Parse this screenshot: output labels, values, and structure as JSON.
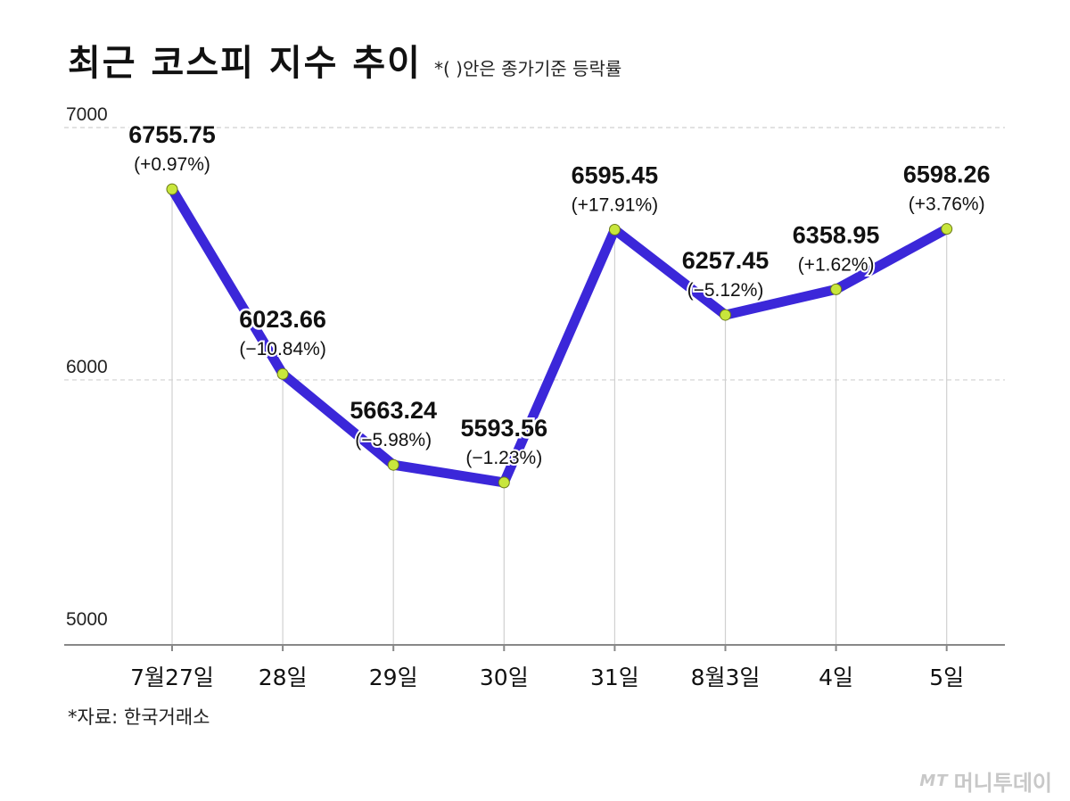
{
  "title": "최근 코스피 지수 추이",
  "subtitle": "*( )안은 종가기준 등락률",
  "source": "*자료: 한국거래소",
  "watermark": {
    "logo": "MT",
    "name": "머니투데이"
  },
  "colors": {
    "line": "#3b27d9",
    "marker": "#c8e63c",
    "grid": "#d0d0d0",
    "axis": "#888888"
  },
  "chart_data": {
    "type": "line",
    "title": "최근 코스피 지수 추이",
    "categories": [
      "7월27일",
      "28일",
      "29일",
      "30일",
      "31일",
      "8월3일",
      "4일",
      "5일"
    ],
    "values": [
      6755.75,
      6023.66,
      5663.24,
      5593.56,
      6595.45,
      6257.45,
      6358.95,
      6598.26
    ],
    "value_labels": [
      "6755.75",
      "6023.66",
      "5663.24",
      "5593.56",
      "6595.45",
      "6257.45",
      "6358.95",
      "6598.26"
    ],
    "change_labels": [
      "(+0.97%)",
      "(−10.84%)",
      "(−5.98%)",
      "(−1.23%)",
      "(+17.91%)",
      "(−5.12%)",
      "(+1.62%)",
      "(+3.76%)"
    ],
    "ylim": [
      4950,
      7000
    ],
    "yticks": [
      5000,
      6000,
      7000
    ],
    "grid": true
  }
}
